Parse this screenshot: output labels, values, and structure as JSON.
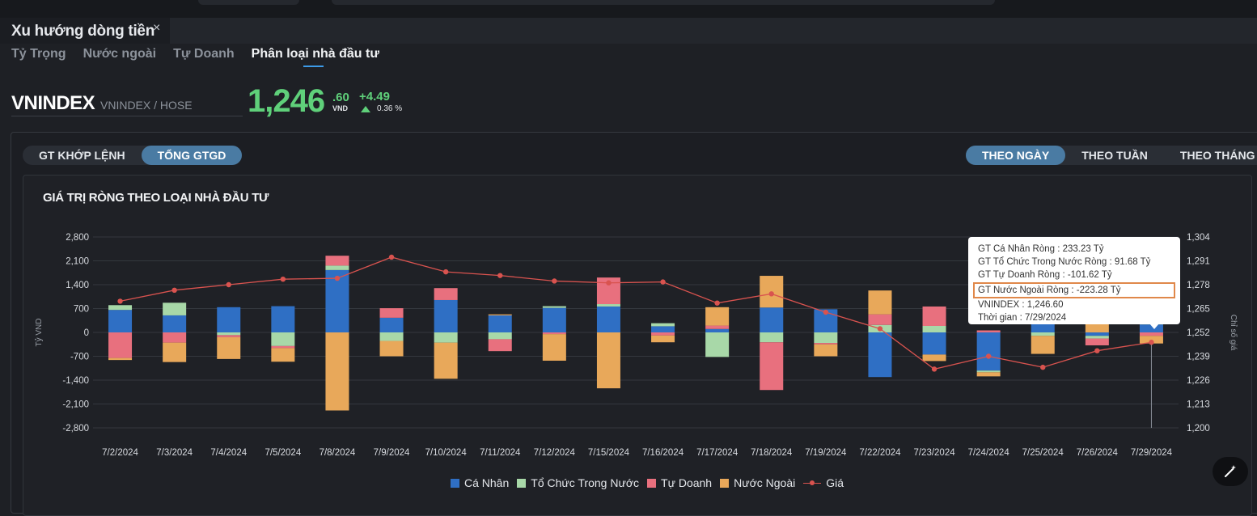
{
  "panel": {
    "title": "Xu hướng dòng tiền",
    "close_glyph": "×"
  },
  "subtabs": [
    "Tỷ Trọng",
    "Nước ngoài",
    "Tự Doanh",
    "Phân loại nhà đầu tư"
  ],
  "active_subtab": 3,
  "index": {
    "name": "VNINDEX",
    "sub": "VNINDEX / HOSE",
    "price_int": "1,246",
    "price_dec": ".60",
    "unit": "VND",
    "change": "+4.49",
    "change_pct": "0.36 %"
  },
  "value_toggle": {
    "left": "GT KHỚP LỆNH",
    "right": "TỔNG GTGD"
  },
  "period_toggle": {
    "day": "THEO NGÀY",
    "week": "THEO TUẦN",
    "month": "THEO THÁNG"
  },
  "chart_data": {
    "type": "bar",
    "stacked": true,
    "title": "GIÁ TRỊ RÒNG THEO LOẠI NHÀ ĐẦU TƯ",
    "ylabel": "Tỷ VND",
    "y2label": "Chỉ số giá",
    "ylim": [
      -2800,
      2800
    ],
    "y2lim": [
      1200,
      1304
    ],
    "yticks": [
      "2,800",
      "2,100",
      "1,400",
      "700",
      "0",
      "-700",
      "-1,400",
      "-2,100",
      "-2,800"
    ],
    "y2ticks": [
      "1,304",
      "1,291",
      "1,278",
      "1,265",
      "1,252",
      "1,239",
      "1,226",
      "1,213",
      "1,200"
    ],
    "categories": [
      "7/2/2024",
      "7/3/2024",
      "7/4/2024",
      "7/5/2024",
      "7/8/2024",
      "7/9/2024",
      "7/10/2024",
      "7/11/2024",
      "7/12/2024",
      "7/15/2024",
      "7/16/2024",
      "7/17/2024",
      "7/18/2024",
      "7/19/2024",
      "7/22/2024",
      "7/23/2024",
      "7/24/2024",
      "7/25/2024",
      "7/26/2024",
      "7/29/2024"
    ],
    "series": [
      {
        "name": "Cá Nhân",
        "color": "#2f6fc4",
        "values": [
          660,
          500,
          740,
          770,
          1830,
          430,
          950,
          500,
          720,
          760,
          180,
          100,
          730,
          680,
          -1310,
          -650,
          -1120,
          550,
          -100,
          233.23
        ]
      },
      {
        "name": "Tổ Chức Trong Nước",
        "color": "#a8d8a8",
        "values": [
          140,
          370,
          -80,
          -400,
          130,
          -250,
          -300,
          -200,
          50,
          70,
          90,
          -720,
          -290,
          -310,
          220,
          190,
          -50,
          -100,
          -80,
          91.68
        ]
      },
      {
        "name": "Tự Doanh",
        "color": "#e8707e",
        "values": [
          -750,
          -300,
          -60,
          -60,
          290,
          280,
          350,
          -350,
          -50,
          780,
          -90,
          100,
          -1400,
          -40,
          310,
          570,
          60,
          80,
          -200,
          -101.62
        ]
      },
      {
        "name": "Nước Ngoài",
        "color": "#e8a85a",
        "values": [
          -60,
          -570,
          -640,
          -400,
          -2290,
          -450,
          -1060,
          30,
          -780,
          -1640,
          -200,
          540,
          930,
          -350,
          700,
          -190,
          -120,
          -530,
          400,
          -223.28
        ]
      }
    ],
    "price": {
      "name": "Giá",
      "color": "#d9534f",
      "values": [
        1269,
        1275,
        1278,
        1281,
        1281.5,
        1293,
        1285,
        1283,
        1280,
        1279,
        1279.5,
        1268,
        1273,
        1263,
        1254,
        1232,
        1239,
        1233,
        1242,
        1246.6
      ]
    },
    "grid": true,
    "legend": "bottom"
  },
  "tooltip": {
    "lines": [
      "GT Cá Nhân Ròng  : 233.23 Tỷ",
      "GT Tổ Chức Trong Nước Ròng : 91.68 Tỷ",
      "GT Tự Doanh Ròng : -101.62 Tỷ",
      "GT Nước Ngoài Ròng : -223.28 Tỷ",
      "VNINDEX : 1,246.60",
      "Thời gian : 7/29/2024"
    ],
    "highlight_index": 3
  },
  "legend_items": [
    "Cá Nhân",
    "Tổ Chức Trong Nước",
    "Tự Doanh",
    "Nước Ngoài",
    "Giá"
  ],
  "fab_icon": "magic-wand-icon"
}
